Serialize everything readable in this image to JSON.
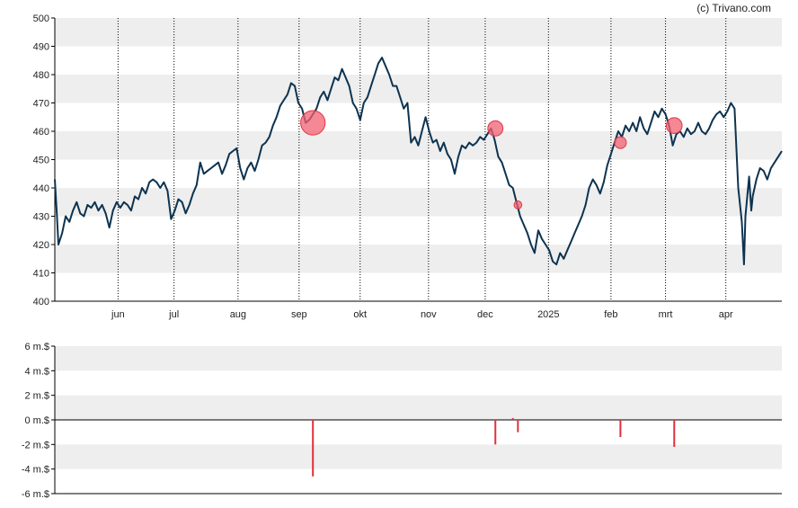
{
  "credit": "(c) Trivano.com",
  "colors": {
    "band": "#eeeeee",
    "background": "#ffffff",
    "price_line": "#0d3350",
    "marker": "#f06070",
    "marker_stroke": "#e03545",
    "volume_bar": "#e0303c",
    "axis": "#000000",
    "vgrid": "#000000"
  },
  "chart_data": [
    {
      "type": "line",
      "name": "price",
      "ylim": [
        400,
        500
      ],
      "yticks": [
        400,
        410,
        420,
        430,
        440,
        450,
        460,
        470,
        480,
        490,
        500
      ],
      "x_domain": [
        0,
        100
      ],
      "month_ticks": [
        {
          "label": "jun",
          "x": 8.7
        },
        {
          "label": "jul",
          "x": 16.4
        },
        {
          "label": "aug",
          "x": 25.2
        },
        {
          "label": "sep",
          "x": 33.6
        },
        {
          "label": "okt",
          "x": 42.0
        },
        {
          "label": "nov",
          "x": 51.4
        },
        {
          "label": "dec",
          "x": 59.2
        },
        {
          "label": "2025",
          "x": 67.9
        },
        {
          "label": "feb",
          "x": 76.5
        },
        {
          "label": "mrt",
          "x": 84.0
        },
        {
          "label": "apr",
          "x": 92.3
        }
      ],
      "series": [
        {
          "name": "close",
          "points": [
            [
              0,
              443
            ],
            [
              0.3,
              430
            ],
            [
              0.5,
              420
            ],
            [
              1.0,
              424
            ],
            [
              1.5,
              430
            ],
            [
              2.0,
              428
            ],
            [
              2.5,
              432
            ],
            [
              3.0,
              435
            ],
            [
              3.5,
              431
            ],
            [
              4.0,
              430
            ],
            [
              4.5,
              434
            ],
            [
              5.0,
              433
            ],
            [
              5.5,
              435
            ],
            [
              6.0,
              432
            ],
            [
              6.5,
              434
            ],
            [
              7.0,
              431
            ],
            [
              7.5,
              426
            ],
            [
              8.0,
              432
            ],
            [
              8.5,
              435
            ],
            [
              9.0,
              433
            ],
            [
              9.5,
              435
            ],
            [
              10.0,
              434
            ],
            [
              10.5,
              432
            ],
            [
              11.0,
              437
            ],
            [
              11.5,
              436
            ],
            [
              12.0,
              440
            ],
            [
              12.5,
              438
            ],
            [
              13.0,
              442
            ],
            [
              13.5,
              443
            ],
            [
              14.0,
              442
            ],
            [
              14.5,
              440
            ],
            [
              15.0,
              442
            ],
            [
              15.5,
              439
            ],
            [
              16.0,
              429
            ],
            [
              16.5,
              432
            ],
            [
              17.0,
              436
            ],
            [
              17.5,
              435
            ],
            [
              18.0,
              431
            ],
            [
              18.5,
              434
            ],
            [
              19.0,
              438
            ],
            [
              19.5,
              441
            ],
            [
              20.0,
              449
            ],
            [
              20.5,
              445
            ],
            [
              21.0,
              446
            ],
            [
              21.5,
              447
            ],
            [
              22.0,
              448
            ],
            [
              22.5,
              449
            ],
            [
              23.0,
              445
            ],
            [
              23.5,
              448
            ],
            [
              24.0,
              452
            ],
            [
              24.5,
              453
            ],
            [
              25.0,
              454
            ],
            [
              25.5,
              447
            ],
            [
              26.0,
              443
            ],
            [
              26.5,
              447
            ],
            [
              27.0,
              449
            ],
            [
              27.5,
              446
            ],
            [
              28.0,
              450
            ],
            [
              28.5,
              455
            ],
            [
              29.0,
              456
            ],
            [
              29.5,
              458
            ],
            [
              30.0,
              462
            ],
            [
              30.5,
              465
            ],
            [
              31.0,
              469
            ],
            [
              31.5,
              471
            ],
            [
              32.0,
              473
            ],
            [
              32.5,
              477
            ],
            [
              33.0,
              476
            ],
            [
              33.5,
              470
            ],
            [
              34.0,
              468
            ],
            [
              34.5,
              463
            ],
            [
              35.0,
              464
            ],
            [
              35.5,
              466
            ],
            [
              36.0,
              468
            ],
            [
              36.5,
              472
            ],
            [
              37.0,
              474
            ],
            [
              37.5,
              471
            ],
            [
              38.0,
              475
            ],
            [
              38.5,
              479
            ],
            [
              39.0,
              478
            ],
            [
              39.5,
              482
            ],
            [
              40.0,
              479
            ],
            [
              40.5,
              476
            ],
            [
              41.0,
              470
            ],
            [
              41.5,
              468
            ],
            [
              42.0,
              464
            ],
            [
              42.5,
              470
            ],
            [
              43.0,
              472
            ],
            [
              43.5,
              476
            ],
            [
              44.0,
              480
            ],
            [
              44.5,
              484
            ],
            [
              45.0,
              486
            ],
            [
              45.5,
              483
            ],
            [
              46.0,
              480
            ],
            [
              46.5,
              476
            ],
            [
              47.0,
              476
            ],
            [
              47.5,
              472
            ],
            [
              48.0,
              468
            ],
            [
              48.5,
              470
            ],
            [
              49.0,
              456
            ],
            [
              49.5,
              458
            ],
            [
              50.0,
              455
            ],
            [
              50.5,
              460
            ],
            [
              51.0,
              465
            ],
            [
              51.5,
              460
            ],
            [
              52.0,
              456
            ],
            [
              52.5,
              457
            ],
            [
              53.0,
              453
            ],
            [
              53.5,
              456
            ],
            [
              54.0,
              452
            ],
            [
              54.5,
              450
            ],
            [
              55.0,
              445
            ],
            [
              55.5,
              451
            ],
            [
              56.0,
              455
            ],
            [
              56.5,
              454
            ],
            [
              57.0,
              456
            ],
            [
              57.5,
              455
            ],
            [
              58.0,
              456
            ],
            [
              58.5,
              458
            ],
            [
              59.0,
              457
            ],
            [
              59.5,
              459
            ],
            [
              60.0,
              461
            ],
            [
              60.5,
              457
            ],
            [
              61.0,
              451
            ],
            [
              61.5,
              449
            ],
            [
              62.0,
              445
            ],
            [
              62.5,
              441
            ],
            [
              63.0,
              440
            ],
            [
              63.5,
              435
            ],
            [
              64.0,
              430
            ],
            [
              64.5,
              427
            ],
            [
              65.0,
              424
            ],
            [
              65.5,
              420
            ],
            [
              66.0,
              417
            ],
            [
              66.5,
              425
            ],
            [
              67.0,
              422
            ],
            [
              67.5,
              420
            ],
            [
              68.0,
              418
            ],
            [
              68.5,
              414
            ],
            [
              69.0,
              413
            ],
            [
              69.5,
              417
            ],
            [
              70.0,
              415
            ],
            [
              70.5,
              418
            ],
            [
              71.0,
              421
            ],
            [
              71.5,
              424
            ],
            [
              72.0,
              427
            ],
            [
              72.5,
              430
            ],
            [
              73.0,
              434
            ],
            [
              73.5,
              440
            ],
            [
              74.0,
              443
            ],
            [
              74.5,
              441
            ],
            [
              75.0,
              438
            ],
            [
              75.5,
              442
            ],
            [
              76.0,
              448
            ],
            [
              76.5,
              452
            ],
            [
              77.0,
              456
            ],
            [
              77.5,
              460
            ],
            [
              78.0,
              458
            ],
            [
              78.5,
              462
            ],
            [
              79.0,
              460
            ],
            [
              79.5,
              463
            ],
            [
              80.0,
              460
            ],
            [
              80.5,
              465
            ],
            [
              81.0,
              461
            ],
            [
              81.5,
              459
            ],
            [
              82.0,
              463
            ],
            [
              82.5,
              467
            ],
            [
              83.0,
              465
            ],
            [
              83.5,
              468
            ],
            [
              84.0,
              466
            ],
            [
              84.5,
              462
            ],
            [
              85.0,
              455
            ],
            [
              85.5,
              459
            ],
            [
              86.0,
              460
            ],
            [
              86.5,
              458
            ],
            [
              87.0,
              461
            ],
            [
              87.5,
              459
            ],
            [
              88.0,
              460
            ],
            [
              88.5,
              463
            ],
            [
              89.0,
              460
            ],
            [
              89.5,
              459
            ],
            [
              90.0,
              461
            ],
            [
              90.5,
              464
            ],
            [
              91.0,
              466
            ],
            [
              91.5,
              467
            ],
            [
              92.0,
              465
            ],
            [
              92.5,
              467
            ],
            [
              93.0,
              470
            ],
            [
              93.5,
              468
            ],
            [
              94.0,
              440
            ],
            [
              94.5,
              428
            ],
            [
              94.8,
              413
            ],
            [
              95.0,
              430
            ],
            [
              95.5,
              444
            ],
            [
              95.8,
              432
            ],
            [
              96.0,
              437
            ],
            [
              96.5,
              443
            ],
            [
              97.0,
              447
            ],
            [
              97.5,
              446
            ],
            [
              98.0,
              443
            ],
            [
              98.5,
              447
            ],
            [
              99.0,
              449
            ],
            [
              99.5,
              451
            ],
            [
              100,
              453
            ]
          ]
        }
      ],
      "markers": [
        {
          "x": 35.5,
          "y": 463,
          "size": 3
        },
        {
          "x": 60.6,
          "y": 461,
          "size": 1.6
        },
        {
          "x": 63.7,
          "y": 434,
          "size": 0.5
        },
        {
          "x": 77.8,
          "y": 456,
          "size": 1.1
        },
        {
          "x": 85.2,
          "y": 462,
          "size": 1.7
        }
      ]
    },
    {
      "type": "bar",
      "name": "volume",
      "ylim": [
        -6,
        6
      ],
      "yticks": [
        -6,
        -4,
        -2,
        0,
        2,
        4,
        6
      ],
      "ytick_labels": [
        "-6 m.$",
        "-4 m.$",
        "-2 m.$",
        "0 m.$",
        "2 m.$",
        "4 m.$",
        "6 m.$"
      ],
      "bars": [
        {
          "x": 35.5,
          "value": -4.6
        },
        {
          "x": 60.6,
          "value": -2.0
        },
        {
          "x": 63.0,
          "value": 0.15
        },
        {
          "x": 63.7,
          "value": -1.0
        },
        {
          "x": 77.8,
          "value": -1.4
        },
        {
          "x": 85.2,
          "value": -2.2
        }
      ]
    }
  ]
}
